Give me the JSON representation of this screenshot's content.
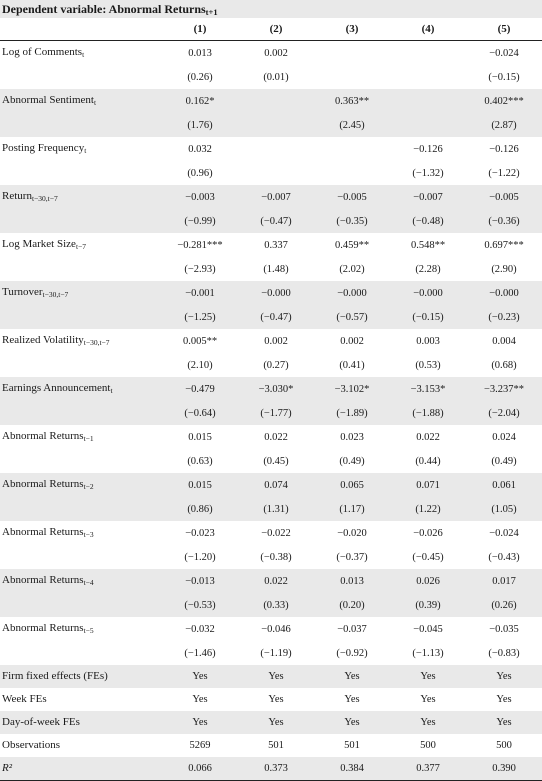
{
  "header": {
    "title_main": "Dependent variable: Abnormal Returns",
    "title_sub": "t+1"
  },
  "columns": [
    "(1)",
    "(2)",
    "(3)",
    "(4)",
    "(5)"
  ],
  "rows": [
    {
      "name": "Log of Comments",
      "sub": "t",
      "coef": [
        "0.013",
        "0.002",
        "",
        "",
        "−0.024"
      ],
      "t": [
        "(0.26)",
        "(0.01)",
        "",
        "",
        "(−0.15)"
      ]
    },
    {
      "name": "Abnormal Sentiment",
      "sub": "t",
      "coef": [
        "0.162*",
        "",
        "0.363**",
        "",
        "0.402***"
      ],
      "t": [
        "(1.76)",
        "",
        "(2.45)",
        "",
        "(2.87)"
      ]
    },
    {
      "name": "Posting Frequency",
      "sub": "t",
      "coef": [
        "0.032",
        "",
        "",
        "−0.126",
        "−0.126"
      ],
      "t": [
        "(0.96)",
        "",
        "",
        "(−1.32)",
        "(−1.22)"
      ]
    },
    {
      "name": "Return",
      "sub": "t−30,t−7",
      "coef": [
        "−0.003",
        "−0.007",
        "−0.005",
        "−0.007",
        "−0.005"
      ],
      "t": [
        "(−0.99)",
        "(−0.47)",
        "(−0.35)",
        "(−0.48)",
        "(−0.36)"
      ]
    },
    {
      "name": "Log Market Size",
      "sub": "t−7",
      "coef": [
        "−0.281***",
        "0.337",
        "0.459**",
        "0.548**",
        "0.697***"
      ],
      "t": [
        "(−2.93)",
        "(1.48)",
        "(2.02)",
        "(2.28)",
        "(2.90)"
      ]
    },
    {
      "name": "Turnover",
      "sub": "t−30,t−7",
      "coef": [
        "−0.001",
        "−0.000",
        "−0.000",
        "−0.000",
        "−0.000"
      ],
      "t": [
        "(−1.25)",
        "(−0.47)",
        "(−0.57)",
        "(−0.15)",
        "(−0.23)"
      ]
    },
    {
      "name": "Realized Volatility",
      "sub": "t−30,t−7",
      "coef": [
        "0.005**",
        "0.002",
        "0.002",
        "0.003",
        "0.004"
      ],
      "t": [
        "(2.10)",
        "(0.27)",
        "(0.41)",
        "(0.53)",
        "(0.68)"
      ]
    },
    {
      "name": "Earnings Announcement",
      "sub": "t",
      "coef": [
        "−0.479",
        "−3.030*",
        "−3.102*",
        "−3.153*",
        "−3.237**"
      ],
      "t": [
        "(−0.64)",
        "(−1.77)",
        "(−1.89)",
        "(−1.88)",
        "(−2.04)"
      ]
    },
    {
      "name": "Abnormal Returns",
      "sub": "t−1",
      "coef": [
        "0.015",
        "0.022",
        "0.023",
        "0.022",
        "0.024"
      ],
      "t": [
        "(0.63)",
        "(0.45)",
        "(0.49)",
        "(0.44)",
        "(0.49)"
      ]
    },
    {
      "name": "Abnormal Returns",
      "sub": "t−2",
      "coef": [
        "0.015",
        "0.074",
        "0.065",
        "0.071",
        "0.061"
      ],
      "t": [
        "(0.86)",
        "(1.31)",
        "(1.17)",
        "(1.22)",
        "(1.05)"
      ]
    },
    {
      "name": "Abnormal Returns",
      "sub": "t−3",
      "coef": [
        "−0.023",
        "−0.022",
        "−0.020",
        "−0.026",
        "−0.024"
      ],
      "t": [
        "(−1.20)",
        "(−0.38)",
        "(−0.37)",
        "(−0.45)",
        "(−0.43)"
      ]
    },
    {
      "name": "Abnormal Returns",
      "sub": "t−4",
      "coef": [
        "−0.013",
        "0.022",
        "0.013",
        "0.026",
        "0.017"
      ],
      "t": [
        "(−0.53)",
        "(0.33)",
        "(0.20)",
        "(0.39)",
        "(0.26)"
      ]
    },
    {
      "name": "Abnormal Returns",
      "sub": "t−5",
      "coef": [
        "−0.032",
        "−0.046",
        "−0.037",
        "−0.045",
        "−0.035"
      ],
      "t": [
        "(−1.46)",
        "(−1.19)",
        "(−0.92)",
        "(−1.13)",
        "(−0.83)"
      ]
    }
  ],
  "footer_rows": [
    {
      "name": "Firm fixed effects (FEs)",
      "vals": [
        "Yes",
        "Yes",
        "Yes",
        "Yes",
        "Yes"
      ]
    },
    {
      "name": "Week FEs",
      "vals": [
        "Yes",
        "Yes",
        "Yes",
        "Yes",
        "Yes"
      ]
    },
    {
      "name": "Day-of-week FEs",
      "vals": [
        "Yes",
        "Yes",
        "Yes",
        "Yes",
        "Yes"
      ]
    },
    {
      "name": "Observations",
      "vals": [
        "5269",
        "501",
        "501",
        "500",
        "500"
      ]
    },
    {
      "name": "R²",
      "vals": [
        "0.066",
        "0.373",
        "0.384",
        "0.377",
        "0.390"
      ]
    }
  ]
}
